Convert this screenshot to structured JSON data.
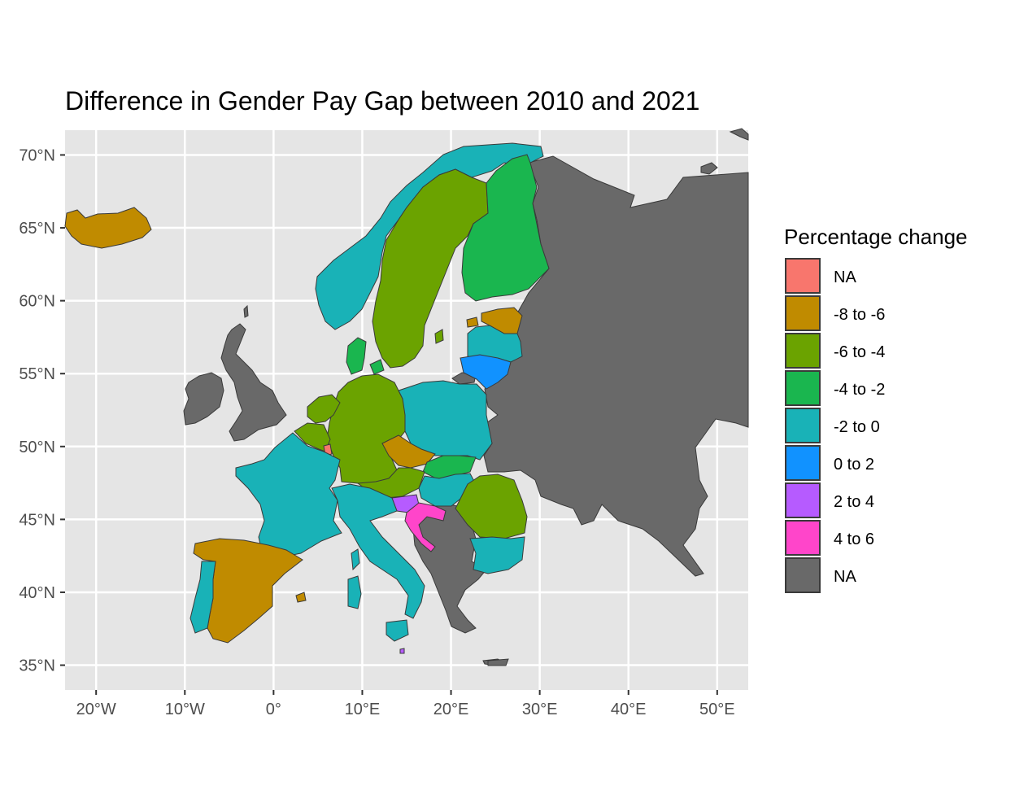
{
  "title": "Difference in Gender Pay Gap between 2010 and 2021",
  "map": {
    "type": "choropleth",
    "projection": "lon/lat (equirectangular)",
    "lon_range": [
      -23.5,
      53.5
    ],
    "lat_range": [
      33.3,
      71.7
    ],
    "grid": true,
    "x_ticks": [
      {
        "value": -20,
        "label": "20°W"
      },
      {
        "value": -10,
        "label": "10°W"
      },
      {
        "value": 0,
        "label": "0°"
      },
      {
        "value": 10,
        "label": "10°E"
      },
      {
        "value": 20,
        "label": "20°E"
      },
      {
        "value": 30,
        "label": "30°E"
      },
      {
        "value": 40,
        "label": "40°E"
      },
      {
        "value": 50,
        "label": "50°E"
      }
    ],
    "y_ticks": [
      {
        "value": 35,
        "label": "35°N"
      },
      {
        "value": 40,
        "label": "40°N"
      },
      {
        "value": 45,
        "label": "45°N"
      },
      {
        "value": 50,
        "label": "50°N"
      },
      {
        "value": 55,
        "label": "55°N"
      },
      {
        "value": 60,
        "label": "60°N"
      },
      {
        "value": 65,
        "label": "65°N"
      },
      {
        "value": 70,
        "label": "70°N"
      }
    ],
    "colors": {
      "na_cat": "#F8766D",
      "-8 to -6": "#C08B00",
      "-6 to -4": "#6BA300",
      "-4 to -2": "#1AB64F",
      "-2 to 0": "#19B2B7",
      "0 to 2": "#1192FF",
      "2 to 4": "#B65BFF",
      "4 to 6": "#FF45CA",
      "na_grey": "#696969",
      "panel_bg": "#E5E5E5",
      "grid": "#FFFFFF",
      "border": "#3A3A3A"
    },
    "countries": [
      {
        "name": "Iceland",
        "category": "-8 to -6"
      },
      {
        "name": "Norway",
        "category": "-2 to 0"
      },
      {
        "name": "Sweden",
        "category": "-6 to -4"
      },
      {
        "name": "Finland",
        "category": "-4 to -2"
      },
      {
        "name": "Estonia",
        "category": "-8 to -6"
      },
      {
        "name": "Latvia",
        "category": "-2 to 0"
      },
      {
        "name": "Lithuania",
        "category": "0 to 2"
      },
      {
        "name": "Denmark",
        "category": "-4 to -2"
      },
      {
        "name": "Germany",
        "category": "-6 to -4"
      },
      {
        "name": "Netherlands",
        "category": "-6 to -4"
      },
      {
        "name": "Belgium",
        "category": "-6 to -4"
      },
      {
        "name": "Luxembourg",
        "category": "NA"
      },
      {
        "name": "Poland",
        "category": "-2 to 0"
      },
      {
        "name": "Czechia",
        "category": "-8 to -6"
      },
      {
        "name": "Slovakia",
        "category": "-4 to -2"
      },
      {
        "name": "Austria",
        "category": "-6 to -4"
      },
      {
        "name": "Hungary",
        "category": "-2 to 0"
      },
      {
        "name": "Slovenia",
        "category": "2 to 4"
      },
      {
        "name": "Croatia",
        "category": "4 to 6"
      },
      {
        "name": "Romania",
        "category": "-6 to -4"
      },
      {
        "name": "Bulgaria",
        "category": "-2 to 0"
      },
      {
        "name": "France",
        "category": "-2 to 0"
      },
      {
        "name": "Spain",
        "category": "-8 to -6"
      },
      {
        "name": "Portugal",
        "category": "-2 to 0"
      },
      {
        "name": "Italy",
        "category": "-2 to 0"
      },
      {
        "name": "Malta",
        "category": "2 to 4"
      }
    ]
  },
  "legend": {
    "title": "Percentage change",
    "items": [
      {
        "label": "NA",
        "color": "#F8766D"
      },
      {
        "label": "-8 to -6",
        "color": "#C08B00"
      },
      {
        "label": "-6 to -4",
        "color": "#6BA300"
      },
      {
        "label": "-4 to -2",
        "color": "#1AB64F"
      },
      {
        "label": "-2 to 0",
        "color": "#19B2B7"
      },
      {
        "label": "0 to 2",
        "color": "#1192FF"
      },
      {
        "label": "2 to 4",
        "color": "#B65BFF"
      },
      {
        "label": "4 to 6",
        "color": "#FF45CA"
      },
      {
        "label": "NA",
        "color": "#696969"
      }
    ]
  }
}
